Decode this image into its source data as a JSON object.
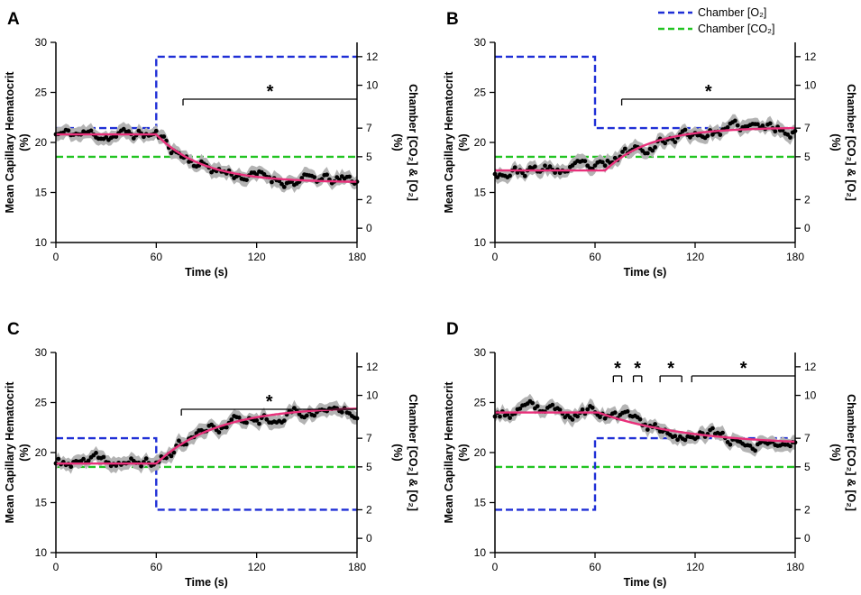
{
  "legend": {
    "o2_label": "Chamber [O₂]",
    "co2_label": "Chamber [CO₂]",
    "o2_color": "#1f2fd6",
    "co2_color": "#22c422"
  },
  "colors": {
    "fit": "#e8307a",
    "data_points": "#000000",
    "error_band": "#b3b3b3",
    "significance": "#000000"
  },
  "chart_data": [
    {
      "panel": "A",
      "type": "line",
      "xlabel": "Time (s)",
      "ylabel_line1": "Mean Capillary Hematocrit",
      "ylabel_line2": "(%)",
      "y2label_line1": "Chamber [CO₂] & [O₂]",
      "y2label_line2": "(%)",
      "xlim": [
        0,
        180
      ],
      "ylim": [
        10,
        30
      ],
      "y2_range": [
        -1,
        13
      ],
      "x_ticks": [
        0,
        60,
        120,
        180
      ],
      "y_ticks": [
        10,
        15,
        20,
        25,
        30
      ],
      "y2_ticks": [
        0,
        2,
        5,
        7,
        10,
        12
      ],
      "hematocrit_start": 20.8,
      "hematocrit_end": 16.0,
      "transition_start": 60,
      "tau": 28,
      "noise_seed": 11,
      "o2_steps": [
        [
          0,
          7.0
        ],
        [
          60,
          12.0
        ],
        [
          180,
          12.0
        ]
      ],
      "co2_steps": [
        [
          0,
          5.0
        ],
        [
          180,
          5.0
        ]
      ],
      "significance": [
        {
          "start": 76,
          "end": 180,
          "label": "*"
        }
      ]
    },
    {
      "panel": "B",
      "type": "line",
      "xlabel": "Time (s)",
      "ylabel_line1": "Mean Capillary Hematocrit",
      "ylabel_line2": "(%)",
      "y2label_line1": "Chamber [CO₂] & [O₂]",
      "y2label_line2": "(%)",
      "xlim": [
        0,
        180
      ],
      "ylim": [
        10,
        30
      ],
      "y2_range": [
        -1,
        13
      ],
      "x_ticks": [
        0,
        60,
        120,
        180
      ],
      "y_ticks": [
        10,
        15,
        20,
        25,
        30
      ],
      "y2_ticks": [
        0,
        2,
        5,
        7,
        10,
        12
      ],
      "hematocrit_start": 17.2,
      "hematocrit_end": 21.5,
      "transition_start": 66,
      "tau": 27,
      "noise_seed": 23,
      "o2_steps": [
        [
          0,
          12.0
        ],
        [
          60,
          7.0
        ],
        [
          180,
          7.0
        ]
      ],
      "co2_steps": [
        [
          0,
          5.0
        ],
        [
          180,
          5.0
        ]
      ],
      "significance": [
        {
          "start": 76,
          "end": 180,
          "label": "*"
        }
      ]
    },
    {
      "panel": "C",
      "type": "line",
      "xlabel": "Time (s)",
      "ylabel_line1": "Mean Capillary Hematocrit",
      "ylabel_line2": "(%)",
      "y2label_line1": "Chamber [CO₂] & [O₂]",
      "y2label_line2": "(%)",
      "xlim": [
        0,
        180
      ],
      "ylim": [
        10,
        30
      ],
      "y2_range": [
        -1,
        13
      ],
      "x_ticks": [
        0,
        60,
        120,
        180
      ],
      "y_ticks": [
        10,
        15,
        20,
        25,
        30
      ],
      "y2_ticks": [
        0,
        2,
        5,
        7,
        10,
        12
      ],
      "hematocrit_start": 18.9,
      "hematocrit_end": 24.6,
      "transition_start": 60,
      "tau": 36,
      "noise_seed": 37,
      "o2_steps": [
        [
          0,
          7.0
        ],
        [
          60,
          2.0
        ],
        [
          180,
          2.0
        ]
      ],
      "co2_steps": [
        [
          0,
          5.0
        ],
        [
          180,
          5.0
        ]
      ],
      "significance": [
        {
          "start": 75,
          "end": 180,
          "label": "*"
        }
      ]
    },
    {
      "panel": "D",
      "type": "line",
      "xlabel": "Time (s)",
      "ylabel_line1": "Mean Capillary Hematocrit",
      "ylabel_line2": "(%)",
      "y2label_line1": "Chamber [CO₂] & [O₂]",
      "y2label_line2": "(%)",
      "xlim": [
        0,
        180
      ],
      "ylim": [
        10,
        30
      ],
      "y2_range": [
        -1,
        13
      ],
      "x_ticks": [
        0,
        60,
        120,
        180
      ],
      "y_ticks": [
        10,
        15,
        20,
        25,
        30
      ],
      "y2_ticks": [
        0,
        2,
        5,
        7,
        10,
        12
      ],
      "hematocrit_start": 24.0,
      "hematocrit_end": 20.7,
      "transition_start": 62,
      "tau": 55,
      "noise_seed": 53,
      "o2_steps": [
        [
          0,
          2.0
        ],
        [
          60,
          7.0
        ],
        [
          180,
          7.0
        ]
      ],
      "co2_steps": [
        [
          0,
          5.0
        ],
        [
          180,
          5.0
        ]
      ],
      "significance": [
        {
          "start": 71,
          "end": 76,
          "label": "*"
        },
        {
          "start": 83,
          "end": 88,
          "label": "*"
        },
        {
          "start": 99,
          "end": 112,
          "label": "*"
        },
        {
          "start": 118,
          "end": 180,
          "label": "*"
        }
      ]
    }
  ]
}
